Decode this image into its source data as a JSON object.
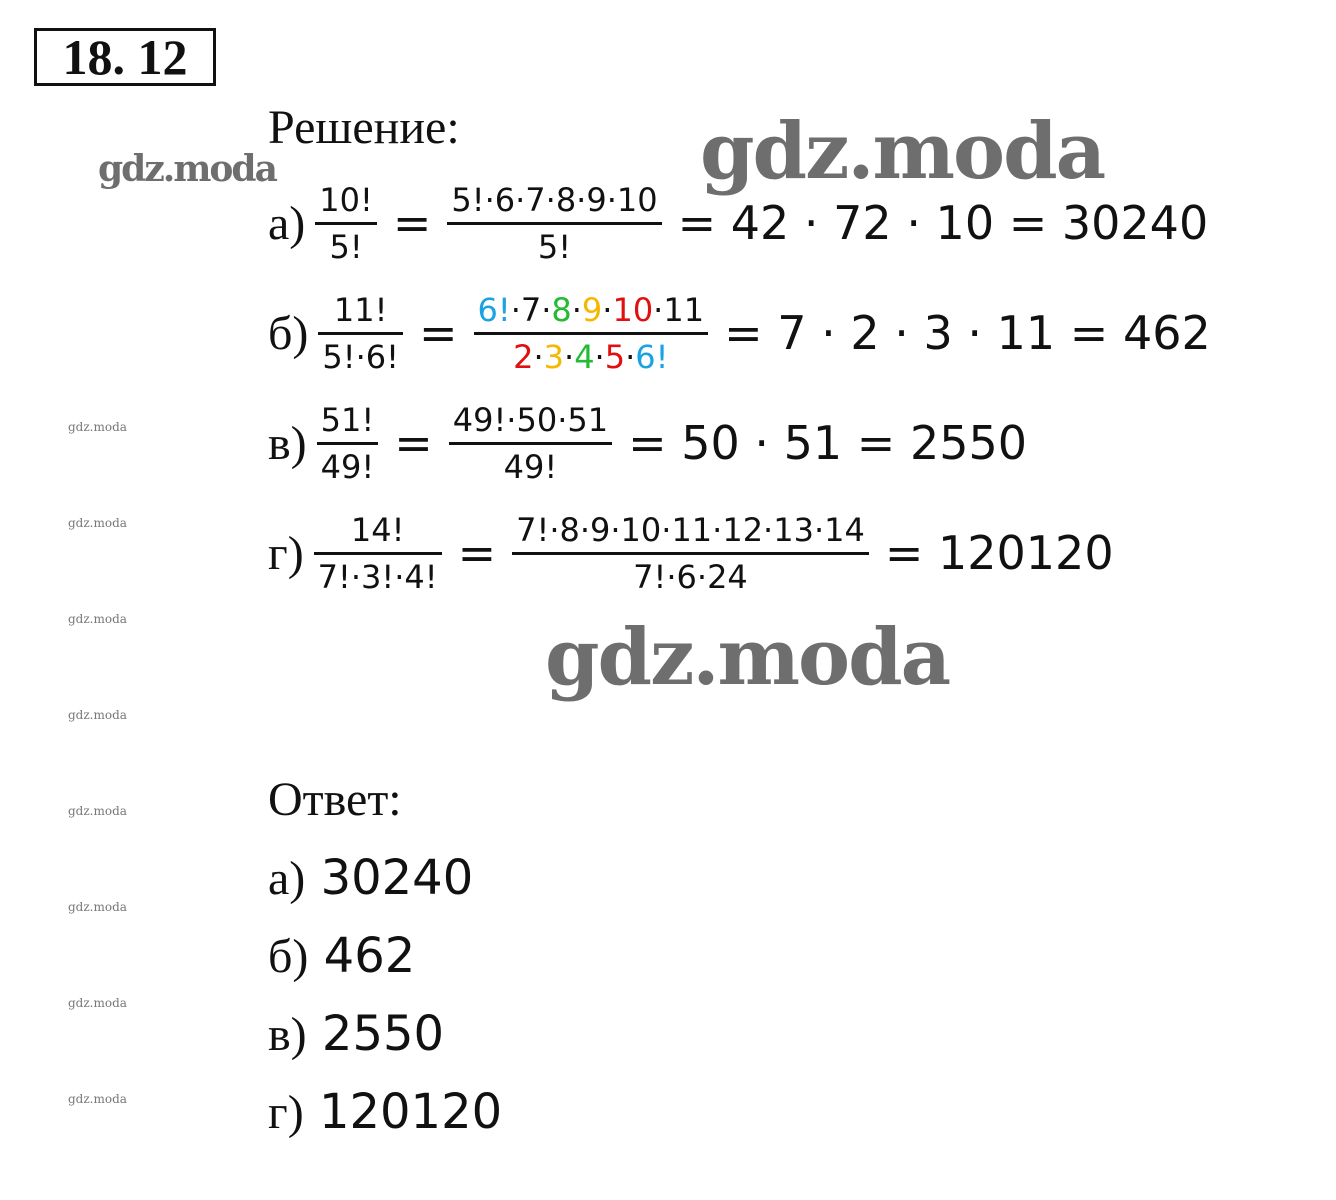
{
  "title": "18. 12",
  "solution_label": "Решение:",
  "rows": [
    {
      "label": "а)",
      "f1": {
        "num": [
          {
            "t": "10!",
            "c": "#111111"
          }
        ],
        "den": [
          {
            "t": "5!",
            "c": "#111111"
          }
        ]
      },
      "f2": {
        "num": [
          {
            "t": "5!·6·7·8·9·10",
            "c": "#111111"
          }
        ],
        "den": [
          {
            "t": "5!",
            "c": "#111111"
          }
        ]
      },
      "result": "= 42 · 72 · 10 =  30240"
    },
    {
      "label": "б)",
      "f1": {
        "num": [
          {
            "t": "11!",
            "c": "#111111"
          }
        ],
        "den": [
          {
            "t": "5!·6!",
            "c": "#111111"
          }
        ]
      },
      "f2": {
        "num": [
          {
            "t": "6!",
            "c": "#1aa3e0"
          },
          {
            "t": "·7·",
            "c": "#111111"
          },
          {
            "t": "8",
            "c": "#22bb33"
          },
          {
            "t": "·",
            "c": "#111111"
          },
          {
            "t": "9",
            "c": "#f5b800"
          },
          {
            "t": "·",
            "c": "#111111"
          },
          {
            "t": "10",
            "c": "#e01010"
          },
          {
            "t": "·11",
            "c": "#111111"
          }
        ],
        "den": [
          {
            "t": "2",
            "c": "#e01010"
          },
          {
            "t": "·",
            "c": "#111111"
          },
          {
            "t": "3",
            "c": "#f5b800"
          },
          {
            "t": "·",
            "c": "#111111"
          },
          {
            "t": "4",
            "c": "#22bb33"
          },
          {
            "t": "·",
            "c": "#111111"
          },
          {
            "t": "5",
            "c": "#e01010"
          },
          {
            "t": "·",
            "c": "#111111"
          },
          {
            "t": "6!",
            "c": "#1aa3e0"
          }
        ]
      },
      "result": "= 7 · 2 · 3 · 11 = 462"
    },
    {
      "label": "в)",
      "f1": {
        "num": [
          {
            "t": "51!",
            "c": "#111111"
          }
        ],
        "den": [
          {
            "t": "49!",
            "c": "#111111"
          }
        ]
      },
      "f2": {
        "num": [
          {
            "t": "49!·50·51",
            "c": "#111111"
          }
        ],
        "den": [
          {
            "t": "49!",
            "c": "#111111"
          }
        ]
      },
      "result": "= 50 · 51 = 2550"
    },
    {
      "label": "г)",
      "f1": {
        "num": [
          {
            "t": "14!",
            "c": "#111111"
          }
        ],
        "den": [
          {
            "t": "7!·3!·4!",
            "c": "#111111"
          }
        ]
      },
      "f2": {
        "num": [
          {
            "t": "7!·8·9·10·11·12·13·14",
            "c": "#111111"
          }
        ],
        "den": [
          {
            "t": "7!·6·24",
            "c": "#111111"
          }
        ]
      },
      "result": "= 120120"
    }
  ],
  "eq": "=",
  "answer_label": "Ответ:",
  "answers": [
    {
      "label": "а)",
      "value": "30240"
    },
    {
      "label": "б)",
      "value": "462"
    },
    {
      "label": "в)",
      "value": "2550"
    },
    {
      "label": "г)",
      "value": "120120"
    }
  ],
  "watermark": "gdz.moda"
}
